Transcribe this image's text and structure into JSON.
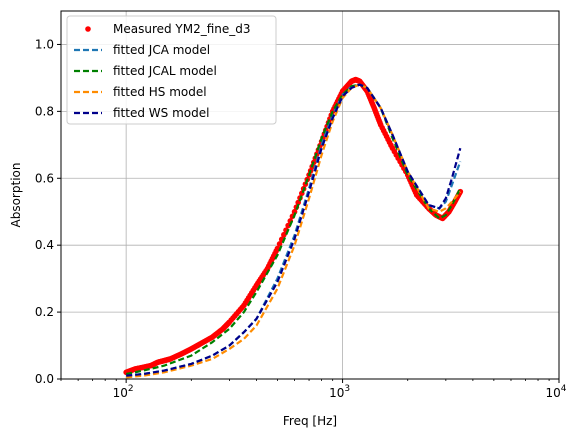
{
  "chart_data": {
    "type": "line",
    "title": "",
    "xlabel": "Freq [Hz]",
    "ylabel": "Absorption",
    "xscale": "log",
    "xlim": [
      50,
      10000
    ],
    "ylim": [
      0,
      1.1
    ],
    "grid": true,
    "legend_position": "upper-left",
    "x_ticks": [
      {
        "value": 100,
        "base": "10",
        "exp": "2"
      },
      {
        "value": 1000,
        "base": "10",
        "exp": "3"
      },
      {
        "value": 10000,
        "base": "10",
        "exp": "4"
      }
    ],
    "y_ticks": [
      {
        "value": 0.0,
        "label": "0.0"
      },
      {
        "value": 0.2,
        "label": "0.2"
      },
      {
        "value": 0.4,
        "label": "0.4"
      },
      {
        "value": 0.6,
        "label": "0.6"
      },
      {
        "value": 0.8,
        "label": "0.8"
      },
      {
        "value": 1.0,
        "label": "1.0"
      }
    ],
    "series": [
      {
        "name": "Measured YM2_fine_d3",
        "style": "markers",
        "color": "#ff0000",
        "x": [
          100,
          110,
          120,
          130,
          140,
          150,
          160,
          180,
          200,
          220,
          250,
          280,
          300,
          350,
          400,
          450,
          500,
          600,
          700,
          800,
          900,
          1000,
          1100,
          1150,
          1200,
          1300,
          1400,
          1500,
          1700,
          2000,
          2200,
          2500,
          2700,
          2900,
          3100,
          3300,
          3500
        ],
        "y": [
          0.02,
          0.03,
          0.035,
          0.04,
          0.05,
          0.055,
          0.06,
          0.075,
          0.09,
          0.105,
          0.125,
          0.15,
          0.17,
          0.22,
          0.28,
          0.33,
          0.39,
          0.5,
          0.61,
          0.71,
          0.8,
          0.86,
          0.89,
          0.895,
          0.89,
          0.86,
          0.81,
          0.76,
          0.69,
          0.61,
          0.55,
          0.51,
          0.49,
          0.48,
          0.5,
          0.53,
          0.56
        ]
      },
      {
        "name": "fitted JCA model",
        "style": "dashed",
        "color": "#1f77b4",
        "x": [
          100,
          120,
          150,
          200,
          250,
          300,
          350,
          400,
          500,
          600,
          700,
          800,
          900,
          1000,
          1100,
          1200,
          1300,
          1500,
          1700,
          2000,
          2500,
          2800,
          3000,
          3200,
          3500
        ],
        "y": [
          0.01,
          0.015,
          0.025,
          0.045,
          0.07,
          0.1,
          0.14,
          0.18,
          0.3,
          0.43,
          0.57,
          0.7,
          0.79,
          0.85,
          0.875,
          0.88,
          0.87,
          0.81,
          0.73,
          0.62,
          0.52,
          0.51,
          0.53,
          0.58,
          0.65
        ]
      },
      {
        "name": "fitted JCAL model",
        "style": "dashed",
        "color": "#008000",
        "x": [
          100,
          120,
          150,
          200,
          250,
          300,
          350,
          400,
          500,
          600,
          700,
          800,
          900,
          1000,
          1100,
          1200,
          1300,
          1500,
          1700,
          2000,
          2500,
          2800,
          3000,
          3200,
          3500
        ],
        "y": [
          0.015,
          0.025,
          0.04,
          0.07,
          0.11,
          0.15,
          0.2,
          0.26,
          0.37,
          0.49,
          0.61,
          0.72,
          0.8,
          0.85,
          0.875,
          0.88,
          0.87,
          0.81,
          0.72,
          0.61,
          0.51,
          0.48,
          0.49,
          0.52,
          0.57
        ]
      },
      {
        "name": "fitted HS model",
        "style": "dashed",
        "color": "#ff8c00",
        "x": [
          100,
          120,
          150,
          200,
          250,
          300,
          350,
          400,
          500,
          600,
          700,
          800,
          900,
          1000,
          1100,
          1200,
          1300,
          1500,
          1700,
          2000,
          2500,
          2800,
          3000,
          3200,
          3500
        ],
        "y": [
          0.005,
          0.01,
          0.02,
          0.04,
          0.06,
          0.09,
          0.12,
          0.16,
          0.27,
          0.4,
          0.54,
          0.67,
          0.77,
          0.84,
          0.87,
          0.88,
          0.87,
          0.81,
          0.73,
          0.62,
          0.51,
          0.5,
          0.51,
          0.53,
          0.56
        ]
      },
      {
        "name": "fitted WS model",
        "style": "dashed",
        "color": "#00008b",
        "x": [
          100,
          120,
          150,
          200,
          250,
          300,
          350,
          400,
          500,
          600,
          700,
          800,
          900,
          1000,
          1100,
          1200,
          1300,
          1500,
          1700,
          2000,
          2500,
          2800,
          3000,
          3200,
          3500
        ],
        "y": [
          0.01,
          0.015,
          0.025,
          0.045,
          0.07,
          0.1,
          0.14,
          0.18,
          0.29,
          0.42,
          0.56,
          0.69,
          0.78,
          0.845,
          0.87,
          0.88,
          0.87,
          0.81,
          0.73,
          0.62,
          0.52,
          0.51,
          0.54,
          0.6,
          0.69
        ]
      }
    ]
  }
}
